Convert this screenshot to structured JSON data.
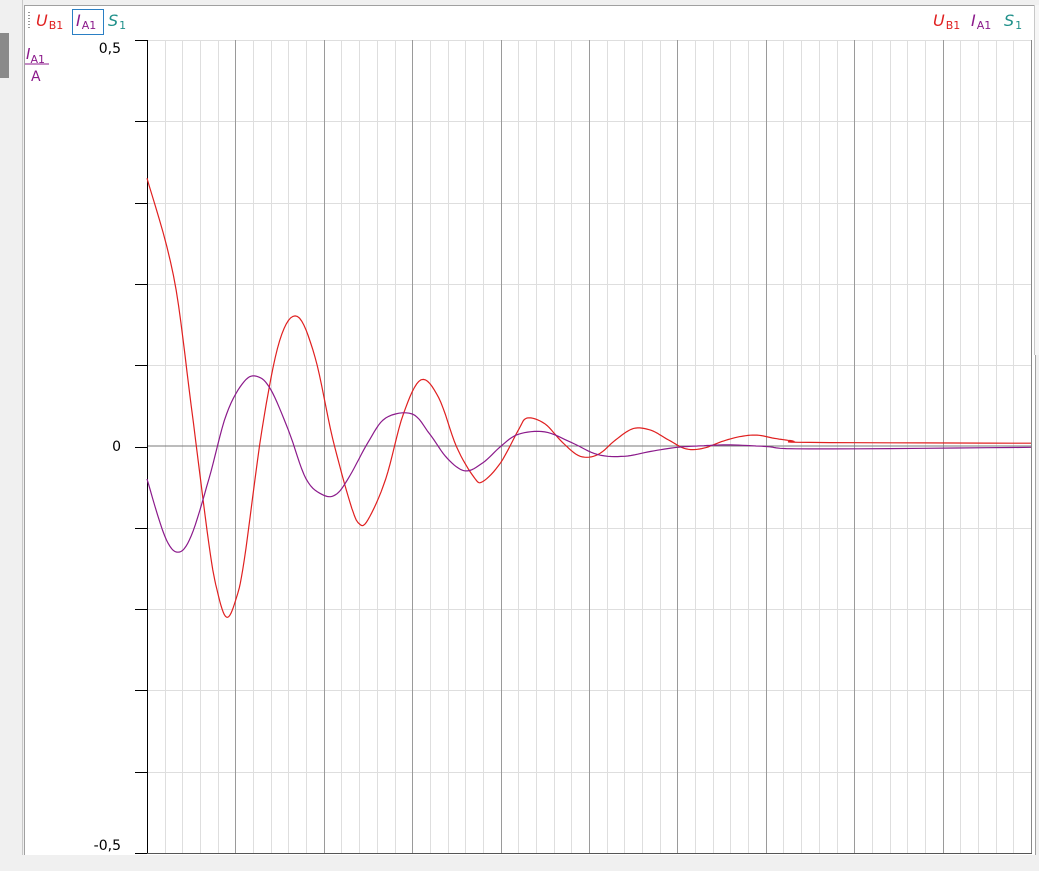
{
  "selector": {
    "items": [
      {
        "symbol": "U",
        "sub": "B1",
        "color": "#e02020"
      },
      {
        "symbol": "I",
        "sub": "A1",
        "color": "#8b1a8b"
      },
      {
        "symbol": "S",
        "sub": "1",
        "color": "#20908a"
      }
    ],
    "selected_index": 1
  },
  "legend": {
    "items": [
      {
        "symbol": "U",
        "sub": "B1",
        "color": "#e02020"
      },
      {
        "symbol": "I",
        "sub": "A1",
        "color": "#8b1a8b"
      },
      {
        "symbol": "S",
        "sub": "1",
        "color": "#20908a"
      }
    ]
  },
  "y_axis": {
    "quantity": "I",
    "quantity_sub": "A1",
    "unit": "A",
    "color": "#8b1a8b",
    "tick_labels": [
      "0,5",
      "0",
      "-0,5"
    ]
  },
  "chart_data": {
    "type": "line",
    "title": "",
    "ylim": [
      -0.5,
      0.5
    ],
    "grid": true,
    "series": [
      {
        "name": "UB1",
        "color": "#e02020",
        "points": [
          [
            0,
            0.33
          ],
          [
            3,
            0.21
          ],
          [
            5,
            0.05
          ],
          [
            7,
            -0.12
          ],
          [
            8,
            -0.18
          ],
          [
            9,
            -0.21
          ],
          [
            10,
            -0.19
          ],
          [
            11,
            -0.14
          ],
          [
            13,
            0.02
          ],
          [
            15,
            0.13
          ],
          [
            17,
            0.16
          ],
          [
            19,
            0.11
          ],
          [
            21,
            0.01
          ],
          [
            23,
            -0.07
          ],
          [
            24,
            -0.095
          ],
          [
            25,
            -0.09
          ],
          [
            27,
            -0.04
          ],
          [
            29,
            0.04
          ],
          [
            31,
            0.082
          ],
          [
            33,
            0.06
          ],
          [
            35,
            0.0
          ],
          [
            37,
            -0.038
          ],
          [
            38,
            -0.043
          ],
          [
            40,
            -0.02
          ],
          [
            42,
            0.02
          ],
          [
            43,
            0.035
          ],
          [
            45,
            0.028
          ],
          [
            47,
            0.005
          ],
          [
            49,
            -0.012
          ],
          [
            51,
            -0.01
          ],
          [
            53,
            0.008
          ],
          [
            55,
            0.022
          ],
          [
            57,
            0.02
          ],
          [
            59,
            0.008
          ],
          [
            61,
            -0.003
          ],
          [
            63,
            -0.002
          ],
          [
            65,
            0.006
          ],
          [
            67,
            0.012
          ],
          [
            69,
            0.014
          ],
          [
            71,
            0.01
          ],
          [
            73,
            0.007
          ],
          [
            75,
            0.005
          ],
          [
            100,
            0.004
          ]
        ]
      },
      {
        "name": "IA1",
        "color": "#8b1a8b",
        "points": [
          [
            0,
            -0.04
          ],
          [
            2,
            -0.11
          ],
          [
            3.5,
            -0.13
          ],
          [
            5,
            -0.11
          ],
          [
            7,
            -0.04
          ],
          [
            9,
            0.04
          ],
          [
            11,
            0.08
          ],
          [
            12.5,
            0.086
          ],
          [
            14,
            0.07
          ],
          [
            16,
            0.02
          ],
          [
            18,
            -0.04
          ],
          [
            20,
            -0.06
          ],
          [
            21.5,
            -0.058
          ],
          [
            23,
            -0.035
          ],
          [
            25,
            0.005
          ],
          [
            27,
            0.035
          ],
          [
            30,
            0.04
          ],
          [
            32,
            0.015
          ],
          [
            34,
            -0.015
          ],
          [
            36,
            -0.03
          ],
          [
            38,
            -0.02
          ],
          [
            40,
            0.0
          ],
          [
            42,
            0.015
          ],
          [
            45,
            0.018
          ],
          [
            48,
            0.005
          ],
          [
            51,
            -0.01
          ],
          [
            54,
            -0.012
          ],
          [
            57,
            -0.006
          ],
          [
            60,
            -0.001
          ],
          [
            63,
            0.001
          ],
          [
            66,
            0.002
          ],
          [
            70,
            0.0
          ],
          [
            75,
            -0.003
          ],
          [
            100,
            -0.001
          ]
        ]
      },
      {
        "name": "S1",
        "color": "#20908a",
        "points": []
      }
    ]
  }
}
